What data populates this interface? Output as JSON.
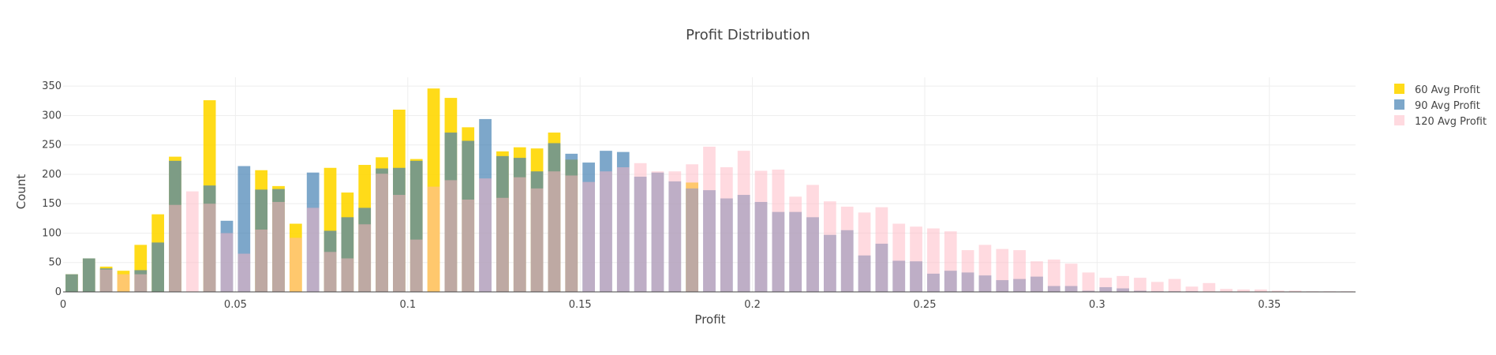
{
  "chart_data": {
    "type": "bar",
    "barmode": "overlay",
    "title": "Profit Distribution",
    "xlabel": "Profit",
    "ylabel": "Count",
    "xlim": [
      0,
      0.375
    ],
    "ylim": [
      0,
      365
    ],
    "bin_width": 0.005,
    "x_ticks": [
      {
        "value": 0,
        "label": "0"
      },
      {
        "value": 0.05,
        "label": "0.05"
      },
      {
        "value": 0.1,
        "label": "0.1"
      },
      {
        "value": 0.15,
        "label": "0.15"
      },
      {
        "value": 0.2,
        "label": "0.2"
      },
      {
        "value": 0.25,
        "label": "0.25"
      },
      {
        "value": 0.3,
        "label": "0.3"
      },
      {
        "value": 0.35,
        "label": "0.35"
      }
    ],
    "y_ticks": [
      {
        "value": 0,
        "label": "0"
      },
      {
        "value": 50,
        "label": "50"
      },
      {
        "value": 100,
        "label": "100"
      },
      {
        "value": 150,
        "label": "150"
      },
      {
        "value": 200,
        "label": "200"
      },
      {
        "value": 250,
        "label": "250"
      },
      {
        "value": 300,
        "label": "300"
      },
      {
        "value": 350,
        "label": "350"
      }
    ],
    "grid": true,
    "legend_position": "right",
    "bins": [
      0.0025,
      0.0075,
      0.0125,
      0.0175,
      0.0225,
      0.0275,
      0.0325,
      0.0375,
      0.0425,
      0.0475,
      0.0525,
      0.0575,
      0.0625,
      0.0675,
      0.0725,
      0.0775,
      0.0825,
      0.0875,
      0.0925,
      0.0975,
      0.1025,
      0.1075,
      0.1125,
      0.1175,
      0.1225,
      0.1275,
      0.1325,
      0.1375,
      0.1425,
      0.1475,
      0.1525,
      0.1575,
      0.1625,
      0.1675,
      0.1725,
      0.1775,
      0.1825,
      0.1875,
      0.1925,
      0.1975,
      0.2025,
      0.2075,
      0.2125,
      0.2175,
      0.2225,
      0.2275,
      0.2325,
      0.2375,
      0.2425,
      0.2475,
      0.2525,
      0.2575,
      0.2625,
      0.2675,
      0.2725,
      0.2775,
      0.2825,
      0.2875,
      0.2925,
      0.2975,
      0.3025,
      0.3075,
      0.3125,
      0.3175,
      0.3225,
      0.3275,
      0.3325,
      0.3375,
      0.3425,
      0.3475,
      0.3525,
      0.3575,
      0.3625,
      0.3675,
      0.3725
    ],
    "series": [
      {
        "name": "60 Avg Profit",
        "color": "#ffd700",
        "opacity": 0.9,
        "values": [
          30,
          57,
          43,
          36,
          80,
          132,
          230,
          0,
          326,
          0,
          0,
          207,
          180,
          116,
          0,
          211,
          169,
          216,
          229,
          310,
          226,
          346,
          330,
          280,
          0,
          239,
          246,
          244,
          271,
          225,
          0,
          0,
          0,
          0,
          0,
          0,
          186,
          0,
          0,
          0,
          0,
          0,
          0,
          0,
          0,
          0,
          0,
          0,
          0,
          0,
          0,
          0,
          0,
          0,
          0,
          0,
          0,
          0,
          0,
          0,
          0,
          0,
          0,
          0,
          0,
          0,
          0,
          0,
          0,
          0,
          0,
          0,
          0,
          0,
          0
        ]
      },
      {
        "name": "90 Avg Profit",
        "color": "#4682b4",
        "opacity": 0.7,
        "values": [
          30,
          57,
          40,
          0,
          37,
          84,
          223,
          0,
          181,
          121,
          214,
          174,
          175,
          0,
          203,
          104,
          127,
          143,
          210,
          211,
          223,
          0,
          271,
          257,
          294,
          231,
          228,
          205,
          253,
          235,
          220,
          240,
          238,
          196,
          203,
          188,
          176,
          173,
          159,
          165,
          153,
          136,
          136,
          127,
          97,
          105,
          62,
          82,
          53,
          52,
          31,
          36,
          33,
          28,
          20,
          22,
          26,
          10,
          10,
          2,
          8,
          6,
          2,
          1,
          1,
          1,
          0,
          0,
          0,
          0,
          0,
          0,
          0,
          0,
          0
        ]
      },
      {
        "name": "120 Avg Profit",
        "color": "#ffb6c1",
        "opacity": 0.5,
        "values": [
          0,
          0,
          38,
          30,
          30,
          0,
          148,
          171,
          150,
          100,
          65,
          106,
          153,
          92,
          143,
          68,
          57,
          115,
          201,
          165,
          89,
          179,
          190,
          157,
          193,
          160,
          195,
          176,
          205,
          198,
          187,
          205,
          212,
          219,
          205,
          205,
          217,
          247,
          212,
          240,
          206,
          208,
          162,
          182,
          154,
          145,
          135,
          144,
          116,
          111,
          108,
          103,
          71,
          80,
          73,
          71,
          52,
          55,
          48,
          33,
          24,
          27,
          24,
          17,
          22,
          9,
          15,
          5,
          4,
          4,
          2,
          2,
          1,
          1,
          1
        ]
      }
    ]
  }
}
